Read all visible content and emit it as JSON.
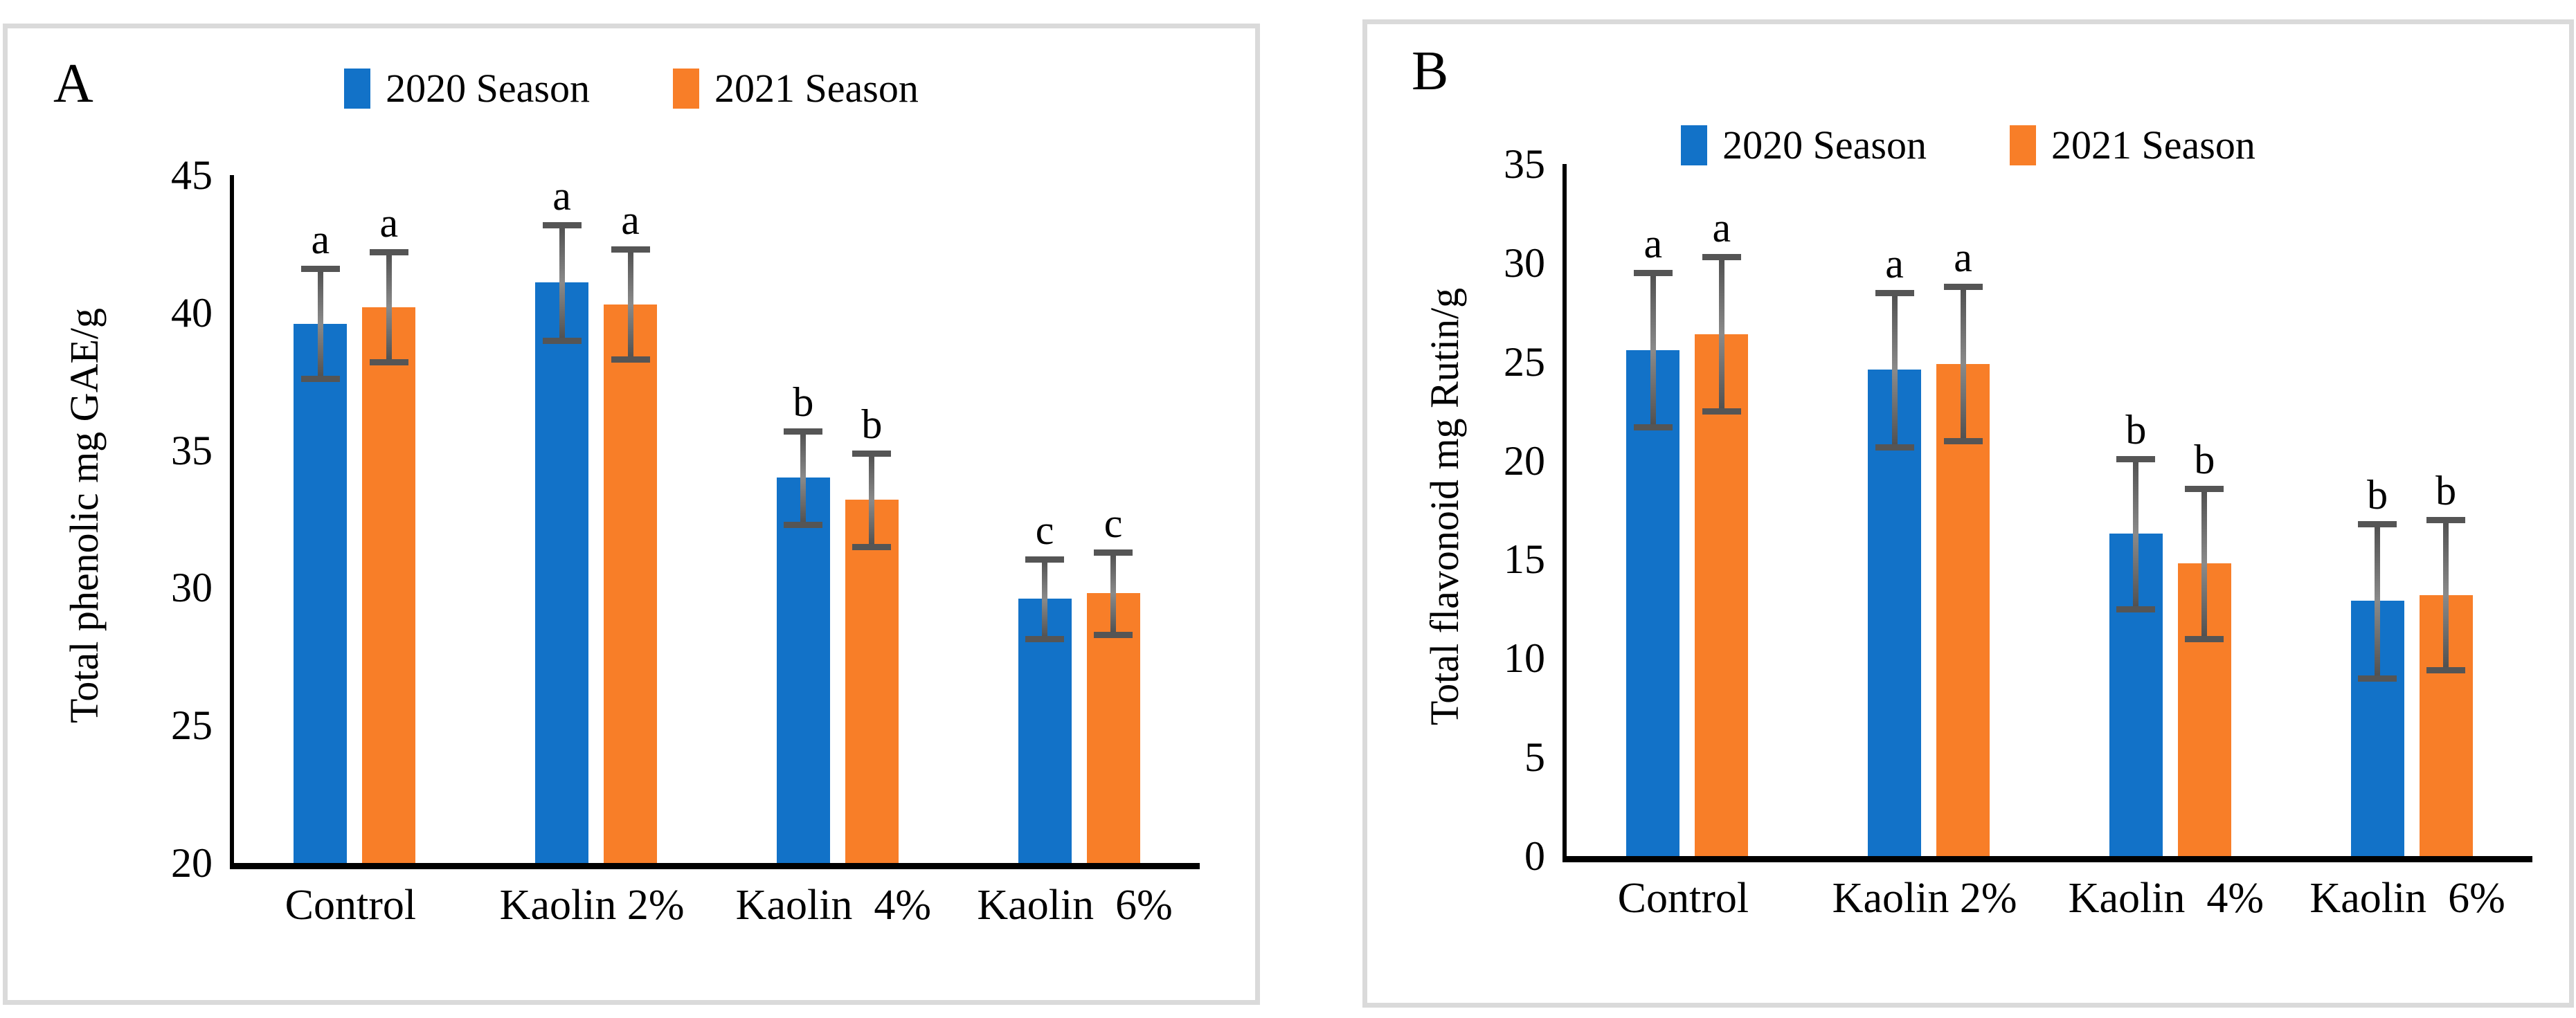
{
  "colors": {
    "series_2020": "#1272c8",
    "series_2021": "#f87e28",
    "error_bar": "#555555",
    "axis": "#000000",
    "panel_border": "#dadada",
    "text": "#000000",
    "background": "#ffffff"
  },
  "chart_data": [
    {
      "id": "A",
      "panel_label": "A",
      "type": "bar",
      "title": "",
      "xlabel": "",
      "ylabel": "Total phenolic mg GAE/g",
      "ylim": [
        20,
        45
      ],
      "yticks": [
        20,
        25,
        30,
        35,
        40,
        45
      ],
      "grid": false,
      "legend_position": "top",
      "categories": [
        "Control",
        "Kaolin 2%",
        "Kaolin  4%",
        "Kaolin  6%"
      ],
      "series": [
        {
          "name": "2020 Season",
          "color_key": "series_2020",
          "values": [
            39.6,
            41.1,
            34.0,
            29.6
          ],
          "errors": [
            2.0,
            2.1,
            1.7,
            1.45
          ],
          "letters": [
            "a",
            "a",
            "b",
            "c"
          ]
        },
        {
          "name": "2021 Season",
          "color_key": "series_2021",
          "values": [
            40.2,
            40.3,
            33.2,
            29.8
          ],
          "errors": [
            2.0,
            2.0,
            1.7,
            1.5
          ],
          "letters": [
            "a",
            "a",
            "b",
            "c"
          ]
        }
      ]
    },
    {
      "id": "B",
      "panel_label": "B",
      "type": "bar",
      "title": "",
      "xlabel": "",
      "ylabel": "Total flavonoid mg Rutin/g",
      "ylim": [
        0,
        35
      ],
      "yticks": [
        0,
        5,
        10,
        15,
        20,
        25,
        30,
        35
      ],
      "grid": false,
      "legend_position": "top",
      "categories": [
        "Control",
        "Kaolin 2%",
        "Kaolin  4%",
        "Kaolin  6%"
      ],
      "series": [
        {
          "name": "2020 Season",
          "color_key": "series_2020",
          "values": [
            25.6,
            24.6,
            16.3,
            12.9
          ],
          "errors": [
            3.9,
            3.9,
            3.8,
            3.9
          ],
          "letters": [
            "a",
            "a",
            "b",
            "b"
          ]
        },
        {
          "name": "2021 Season",
          "color_key": "series_2021",
          "values": [
            26.4,
            24.9,
            14.8,
            13.2
          ],
          "errors": [
            3.9,
            3.9,
            3.8,
            3.8
          ],
          "letters": [
            "a",
            "a",
            "b",
            "b"
          ]
        }
      ]
    }
  ]
}
